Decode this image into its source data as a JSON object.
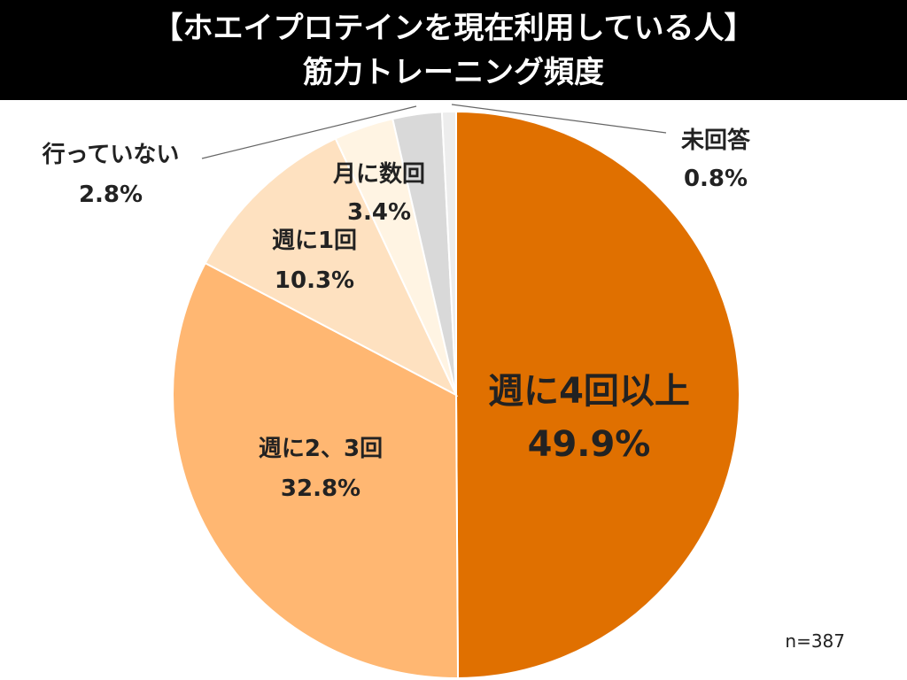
{
  "title": {
    "line1": "【ホエイプロテインを現在利用している人】",
    "line2": "筋力トレーニング頻度"
  },
  "sample_size": "n=387",
  "chart_data": {
    "type": "pie",
    "title": "【ホエイプロテインを現在利用している人】筋力トレーニング頻度",
    "start": "12 o'clock",
    "direction": "clockwise",
    "slices": [
      {
        "name": "週に4回以上",
        "value": 49.9,
        "value_label": "49.9%",
        "color": "#E07000"
      },
      {
        "name": "週に2、3回",
        "value": 32.8,
        "value_label": "32.8%",
        "color": "#FFB772"
      },
      {
        "name": "週に1回",
        "value": 10.3,
        "value_label": "10.3%",
        "color": "#FEE1C0"
      },
      {
        "name": "月に数回",
        "value": 3.4,
        "value_label": "3.4%",
        "color": "#FFF4E3"
      },
      {
        "name": "行っていない",
        "value": 2.8,
        "value_label": "2.8%",
        "color": "#D9D9D9"
      },
      {
        "name": "未回答",
        "value": 0.8,
        "value_label": "0.8%",
        "color": "#EDEDED"
      }
    ]
  }
}
